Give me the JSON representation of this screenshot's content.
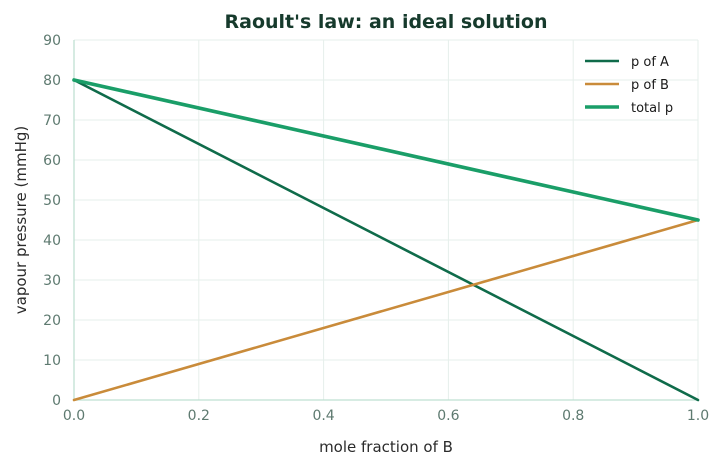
{
  "chart_data": {
    "type": "line",
    "title": "Raoult's law: an ideal solution",
    "xlabel": "mole fraction of B",
    "ylabel": "vapour pressure (mmHg)",
    "xlim": [
      0,
      1
    ],
    "ylim": [
      0,
      90
    ],
    "xticks": [
      0.0,
      0.2,
      0.4,
      0.6,
      0.8,
      1.0
    ],
    "xtick_labels": [
      "0.0",
      "0.2",
      "0.4",
      "0.6",
      "0.8",
      "1.0"
    ],
    "yticks": [
      0,
      10,
      20,
      30,
      40,
      50,
      60,
      70,
      80,
      90
    ],
    "ytick_labels": [
      "0",
      "10",
      "20",
      "30",
      "40",
      "50",
      "60",
      "70",
      "80",
      "90"
    ],
    "grid": true,
    "legend_position": "top-right",
    "series": [
      {
        "name": "p of A",
        "color": "#0f6b4a",
        "x": [
          0,
          1
        ],
        "y": [
          80,
          0
        ]
      },
      {
        "name": "p of B",
        "color": "#c98b3a",
        "x": [
          0,
          1
        ],
        "y": [
          0,
          45
        ]
      },
      {
        "name": "total p",
        "color": "#1a9e68",
        "x": [
          0,
          1
        ],
        "y": [
          80,
          45
        ]
      }
    ]
  }
}
